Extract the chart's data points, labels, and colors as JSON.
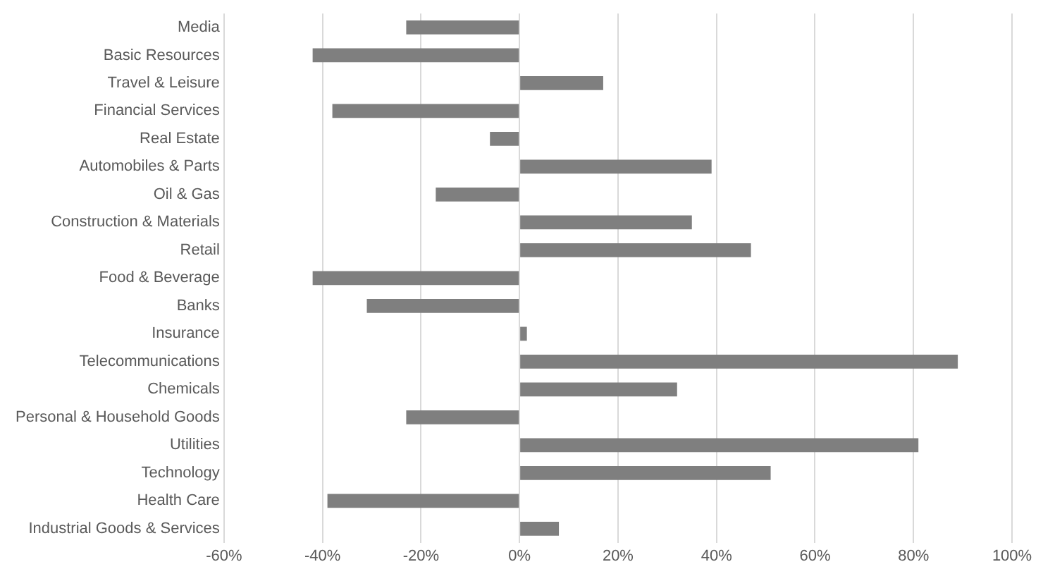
{
  "chart_data": {
    "type": "bar",
    "orientation": "horizontal",
    "categories": [
      "Media",
      "Basic Resources",
      "Travel & Leisure",
      "Financial Services",
      "Real Estate",
      "Automobiles & Parts",
      "Oil & Gas",
      "Construction & Materials",
      "Retail",
      "Food & Beverage",
      "Banks",
      "Insurance",
      "Telecommunications",
      "Chemicals",
      "Personal & Household Goods",
      "Utilities",
      "Technology",
      "Health Care",
      "Industrial Goods & Services"
    ],
    "values": [
      -23,
      -42,
      17,
      -38,
      -6,
      39,
      -17,
      35,
      47,
      -42,
      -31,
      1.5,
      89,
      32,
      -23,
      81,
      51,
      -39,
      8
    ],
    "color": "#7f7f7f",
    "xlim": [
      -60,
      100
    ],
    "xticks": [
      {
        "value": -60,
        "label": "-60%"
      },
      {
        "value": -40,
        "label": "-40%"
      },
      {
        "value": -20,
        "label": "-20%"
      },
      {
        "value": 0,
        "label": "0%"
      },
      {
        "value": 20,
        "label": "20%"
      },
      {
        "value": 40,
        "label": "40%"
      },
      {
        "value": 60,
        "label": "60%"
      },
      {
        "value": 80,
        "label": "80%"
      },
      {
        "value": 100,
        "label": "100%"
      }
    ],
    "grid": "x",
    "legend": false
  }
}
